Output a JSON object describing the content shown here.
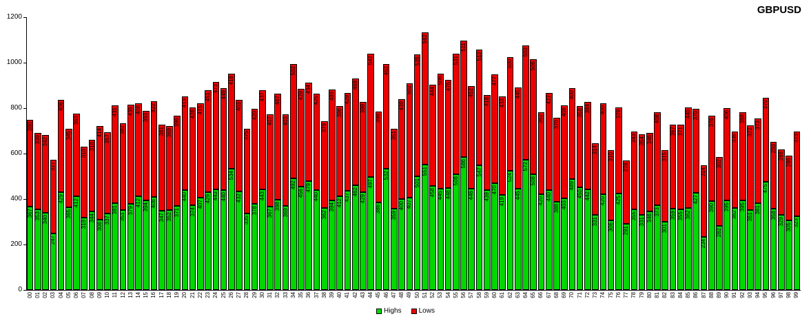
{
  "title": "GBPUSD",
  "legend": {
    "highs_label": "Highs",
    "lows_label": "Lows"
  },
  "colors": {
    "highs": "#00d800",
    "lows": "#ee0000",
    "axis": "#000000",
    "background": "#ffffff"
  },
  "chart_data": {
    "type": "bar",
    "stacked": true,
    "title": "GBPUSD",
    "xlabel": "",
    "ylabel": "",
    "ylim": [
      0,
      1200
    ],
    "yticks": [
      0,
      200,
      400,
      600,
      800,
      1000,
      1200
    ],
    "grid": false,
    "legend_position": "bottom",
    "bar_value_labels": true,
    "categories": [
      "00",
      "01",
      "02",
      "03",
      "04",
      "05",
      "06",
      "07",
      "08",
      "09",
      "10",
      "11",
      "12",
      "13",
      "14",
      "15",
      "16",
      "17",
      "18",
      "19",
      "20",
      "21",
      "22",
      "23",
      "24",
      "25",
      "26",
      "27",
      "28",
      "29",
      "30",
      "31",
      "32",
      "33",
      "34",
      "35",
      "36",
      "37",
      "38",
      "39",
      "40",
      "41",
      "42",
      "43",
      "44",
      "45",
      "46",
      "47",
      "48",
      "49",
      "50",
      "51",
      "52",
      "53",
      "54",
      "55",
      "56",
      "57",
      "58",
      "59",
      "60",
      "61",
      "62",
      "63",
      "64",
      "65",
      "66",
      "67",
      "68",
      "69",
      "70",
      "71",
      "72",
      "73",
      "74",
      "75",
      "76",
      "77",
      "78",
      "79",
      "80",
      "81",
      "82",
      "83",
      "84",
      "85",
      "86",
      "87",
      "88",
      "89",
      "90",
      "91",
      "92",
      "93",
      "94",
      "95",
      "96",
      "97",
      "98",
      "99"
    ],
    "series": [
      {
        "name": "Highs",
        "color": "#00d800",
        "values": [
          367,
          353,
          340,
          247,
          429,
          365,
          412,
          319,
          344,
          308,
          337,
          381,
          351,
          379,
          412,
          394,
          408,
          347,
          352,
          371,
          440,
          374,
          407,
          429,
          443,
          440,
          534,
          432,
          335,
          378,
          443,
          367,
          398,
          369,
          492,
          456,
          479,
          440,
          362,
          394,
          412,
          437,
          462,
          429,
          497,
          386,
          532,
          359,
          400,
          407,
          501,
          551,
          458,
          445,
          448,
          508,
          586,
          446,
          547,
          439,
          470,
          419,
          524,
          445,
          572,
          508,
          420,
          440,
          388,
          403,
          489,
          450,
          442,
          331,
          420,
          306,
          425,
          291,
          355,
          331,
          346,
          373,
          301,
          359,
          355,
          362,
          427,
          234,
          390,
          282,
          395,
          362,
          395,
          351,
          381,
          475,
          358,
          329,
          305,
          323
        ]
      },
      {
        "name": "Lows",
        "color": "#ee0000",
        "values": [
          380,
          339,
          342,
          327,
          406,
          345,
          363,
          310,
          318,
          414,
          357,
          431,
          382,
          435,
          408,
          393,
          422,
          381,
          369,
          396,
          413,
          428,
          415,
          451,
          473,
          449,
          418,
          403,
          375,
          420,
          437,
          407,
          467,
          403,
          502,
          429,
          434,
          425,
          379,
          489,
          396,
          429,
          469,
          399,
          542,
          398,
          462,
          351,
          439,
          502,
          535,
          582,
          444,
          506,
          476,
          531,
          511,
          452,
          512,
          418,
          477,
          433,
          500,
          445,
          503,
          506,
          362,
          427,
          370,
          408,
          400,
          358,
          384,
          314,
          400,
          310,
          379,
          278,
          343,
          354,
          346,
          408,
          315,
          367,
          371,
          440,
          370,
          314,
          376,
          302,
          406,
          336,
          388,
          372,
          373,
          370,
          293,
          288,
          286,
          373
        ]
      }
    ]
  }
}
